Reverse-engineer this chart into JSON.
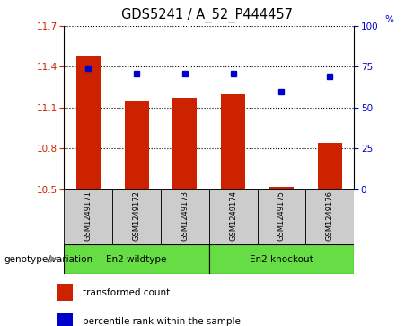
{
  "title": "GDS5241 / A_52_P444457",
  "samples": [
    "GSM1249171",
    "GSM1249172",
    "GSM1249173",
    "GSM1249174",
    "GSM1249175",
    "GSM1249176"
  ],
  "bar_values": [
    11.48,
    11.15,
    11.17,
    11.2,
    10.52,
    10.84
  ],
  "percentile_values": [
    74,
    71,
    71,
    71,
    60,
    69
  ],
  "ylim_left": [
    10.5,
    11.7
  ],
  "ylim_right": [
    0,
    100
  ],
  "yticks_left": [
    10.5,
    10.8,
    11.1,
    11.4,
    11.7
  ],
  "yticks_right": [
    0,
    25,
    50,
    75,
    100
  ],
  "bar_color": "#cc2200",
  "dot_color": "#0000cc",
  "bar_bottom": 10.5,
  "group_label": "genotype/variation",
  "wildtype_label": "En2 wildtype",
  "knockout_label": "En2 knockout",
  "legend_bar_label": "transformed count",
  "legend_dot_label": "percentile rank within the sample",
  "tick_label_area_color": "#cccccc",
  "group_area_color": "#66dd44"
}
